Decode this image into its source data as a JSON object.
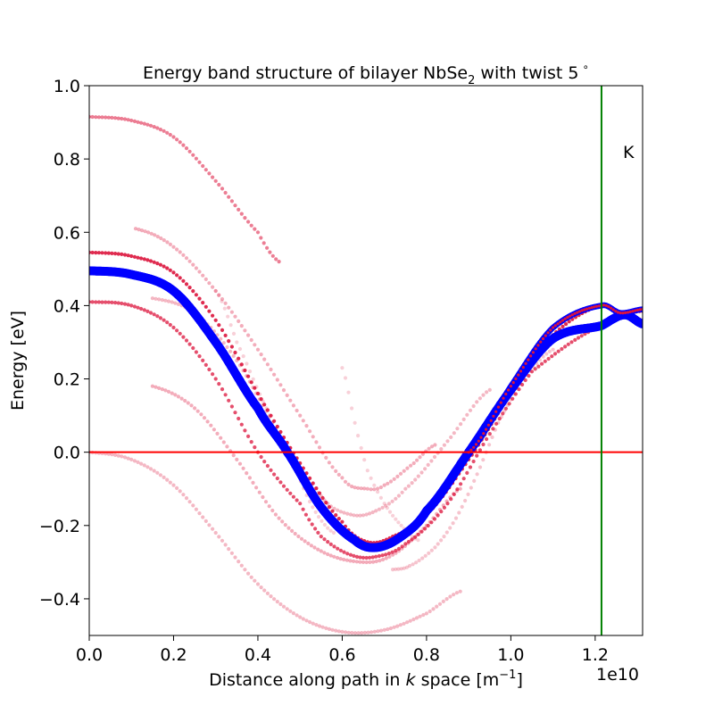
{
  "chart_data": {
    "type": "scatter",
    "title_main": "Energy band structure of bilayer NbSe",
    "title_sub": "2",
    "title_end": " with twist 5",
    "title_degree": "∘",
    "xlabel_pre": "Distance along path in ",
    "xlabel_k": "k",
    "xlabel_mid": " space [m",
    "xlabel_sup": "−1",
    "xlabel_end": "]",
    "x_exponent": "1e10",
    "ylabel": "Energy [eV]",
    "xlim": [
      0.0,
      1.3125
    ],
    "ylim": [
      -0.5,
      1.0
    ],
    "xticks": [
      0.0,
      0.2,
      0.4,
      0.6,
      0.8,
      1.0,
      1.2
    ],
    "xtick_labels": [
      "0.0",
      "0.2",
      "0.4",
      "0.6",
      "0.8",
      "1.0",
      "1.2"
    ],
    "yticks": [
      -0.4,
      -0.2,
      0.0,
      0.2,
      0.4,
      0.6,
      0.8,
      1.0
    ],
    "ytick_labels": [
      "−0.4",
      "−0.2",
      "0.0",
      "0.2",
      "0.4",
      "0.6",
      "0.8",
      "1.0"
    ],
    "fermi_level": {
      "y": 0.0,
      "color": "#ff0000"
    },
    "k_marker": {
      "x": 1.215,
      "label": "K",
      "label_y": 0.82,
      "color": "#008000"
    },
    "colors": {
      "main_band": "#0000ff",
      "projected": "#dc143c"
    },
    "main_band": {
      "description_shown": false,
      "points": [
        [
          0.0,
          0.495
        ],
        [
          0.1,
          0.485
        ],
        [
          0.2,
          0.44
        ],
        [
          0.3,
          0.3
        ],
        [
          0.4,
          0.12
        ],
        [
          0.47,
          0.0
        ],
        [
          0.55,
          -0.15
        ],
        [
          0.63,
          -0.24
        ],
        [
          0.68,
          -0.26
        ],
        [
          0.74,
          -0.23
        ],
        [
          0.8,
          -0.16
        ],
        [
          0.9,
          0.0
        ],
        [
          1.0,
          0.17
        ],
        [
          1.1,
          0.31
        ],
        [
          1.215,
          0.345
        ],
        [
          1.27,
          0.375
        ],
        [
          1.3125,
          0.35
        ]
      ]
    },
    "main_band_upper": {
      "points": [
        [
          0.9,
          0.0
        ],
        [
          1.0,
          0.18
        ],
        [
          1.1,
          0.34
        ],
        [
          1.215,
          0.4
        ],
        [
          1.26,
          0.38
        ],
        [
          1.3125,
          0.39
        ]
      ]
    },
    "projected_bands": [
      {
        "alpha": 0.55,
        "points": [
          [
            0.0,
            0.915
          ],
          [
            0.1,
            0.905
          ],
          [
            0.2,
            0.86
          ],
          [
            0.3,
            0.74
          ],
          [
            0.4,
            0.6
          ],
          [
            0.45,
            0.52
          ]
        ]
      },
      {
        "alpha": 0.9,
        "points": [
          [
            0.0,
            0.545
          ],
          [
            0.1,
            0.535
          ],
          [
            0.2,
            0.49
          ],
          [
            0.3,
            0.36
          ],
          [
            0.4,
            0.16
          ],
          [
            0.5,
            -0.03
          ],
          [
            0.6,
            -0.19
          ],
          [
            0.66,
            -0.245
          ],
          [
            0.72,
            -0.23
          ],
          [
            0.8,
            -0.17
          ],
          [
            0.9,
            -0.02
          ],
          [
            1.0,
            0.16
          ],
          [
            1.1,
            0.32
          ],
          [
            1.215,
            0.4
          ],
          [
            1.26,
            0.38
          ],
          [
            1.3125,
            0.385
          ]
        ]
      },
      {
        "alpha": 0.75,
        "points": [
          [
            0.0,
            0.41
          ],
          [
            0.1,
            0.4
          ],
          [
            0.2,
            0.34
          ],
          [
            0.3,
            0.2
          ],
          [
            0.4,
            0.0
          ],
          [
            0.5,
            -0.14
          ],
          [
            0.55,
            -0.23
          ],
          [
            0.62,
            -0.28
          ],
          [
            0.68,
            -0.285
          ],
          [
            0.75,
            -0.25
          ],
          [
            0.85,
            -0.14
          ],
          [
            0.95,
            0.05
          ],
          [
            1.05,
            0.22
          ],
          [
            1.215,
            0.345
          ],
          [
            1.27,
            0.375
          ],
          [
            1.3125,
            0.36
          ]
        ]
      },
      {
        "alpha": 0.35,
        "points": [
          [
            0.11,
            0.61
          ],
          [
            0.2,
            0.56
          ],
          [
            0.3,
            0.44
          ],
          [
            0.4,
            0.28
          ],
          [
            0.5,
            0.1
          ],
          [
            0.6,
            -0.07
          ],
          [
            0.66,
            -0.1
          ],
          [
            0.7,
            -0.09
          ],
          [
            0.77,
            -0.03
          ],
          [
            0.82,
            0.02
          ]
        ]
      },
      {
        "alpha": 0.3,
        "points": [
          [
            0.15,
            0.42
          ],
          [
            0.25,
            0.38
          ],
          [
            0.35,
            0.25
          ],
          [
            0.45,
            0.05
          ],
          [
            0.55,
            -0.12
          ],
          [
            0.62,
            -0.17
          ],
          [
            0.68,
            -0.16
          ],
          [
            0.75,
            -0.1
          ],
          [
            0.85,
            0.03
          ],
          [
            0.95,
            0.17
          ]
        ]
      },
      {
        "alpha": 0.35,
        "points": [
          [
            0.15,
            0.18
          ],
          [
            0.25,
            0.12
          ],
          [
            0.35,
            -0.02
          ],
          [
            0.45,
            -0.18
          ],
          [
            0.55,
            -0.27
          ],
          [
            0.65,
            -0.3
          ],
          [
            0.72,
            -0.28
          ],
          [
            0.8,
            -0.2
          ],
          [
            0.88,
            -0.1
          ]
        ]
      },
      {
        "alpha": 0.3,
        "points": [
          [
            0.0,
            0.0
          ],
          [
            0.1,
            -0.02
          ],
          [
            0.2,
            -0.09
          ],
          [
            0.3,
            -0.22
          ],
          [
            0.4,
            -0.36
          ],
          [
            0.5,
            -0.45
          ],
          [
            0.6,
            -0.49
          ],
          [
            0.7,
            -0.485
          ],
          [
            0.8,
            -0.44
          ],
          [
            0.88,
            -0.38
          ]
        ]
      },
      {
        "alpha": 0.2,
        "points": [
          [
            0.3,
            0.44
          ],
          [
            0.35,
            0.3
          ],
          [
            0.42,
            0.12
          ],
          [
            0.48,
            -0.02
          ],
          [
            0.53,
            -0.15
          ],
          [
            0.58,
            -0.22
          ]
        ]
      },
      {
        "alpha": 0.2,
        "points": [
          [
            0.6,
            0.23
          ],
          [
            0.63,
            0.08
          ],
          [
            0.66,
            -0.05
          ],
          [
            0.7,
            -0.14
          ],
          [
            0.74,
            -0.2
          ],
          [
            0.78,
            -0.24
          ]
        ]
      },
      {
        "alpha": 0.25,
        "points": [
          [
            0.72,
            -0.32
          ],
          [
            0.76,
            -0.31
          ],
          [
            0.82,
            -0.26
          ],
          [
            0.87,
            -0.18
          ],
          [
            0.92,
            -0.06
          ],
          [
            0.97,
            0.08
          ],
          [
            1.03,
            0.2
          ],
          [
            1.1,
            0.28
          ]
        ]
      }
    ]
  }
}
